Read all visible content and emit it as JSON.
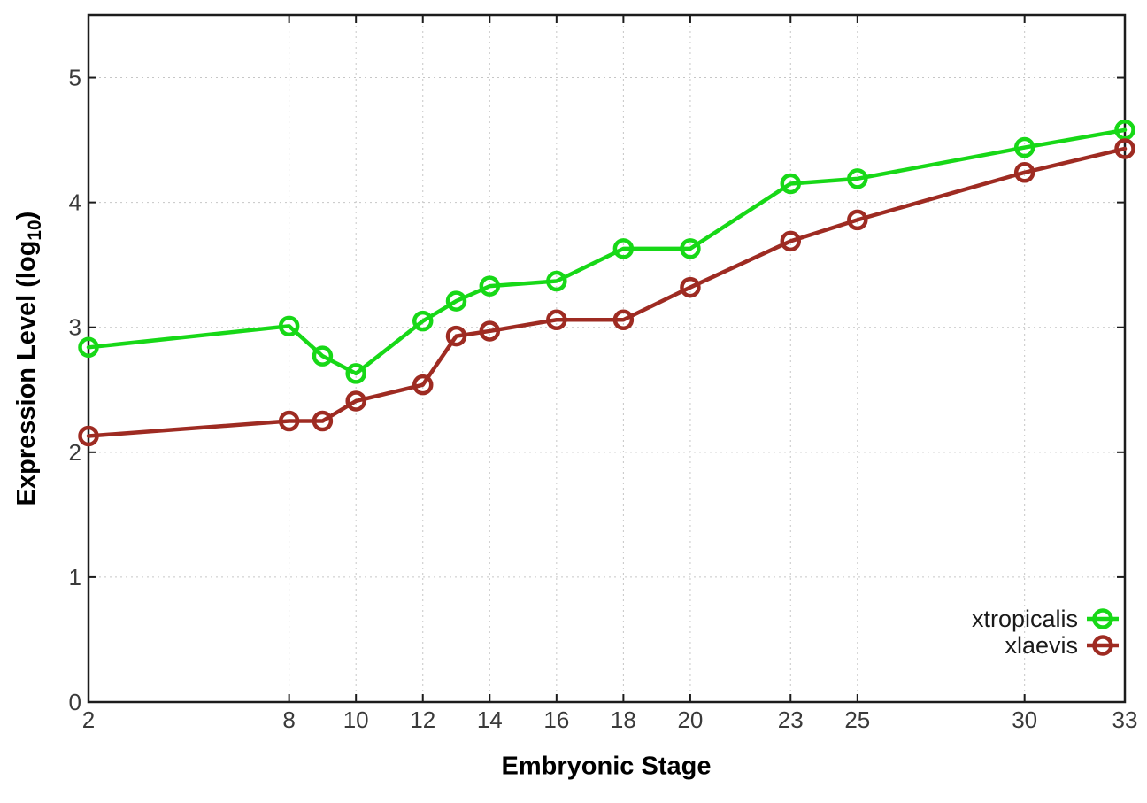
{
  "chart_data": {
    "type": "line",
    "title": "",
    "xlabel": "Embryonic Stage",
    "ylabel": "Expression Level (log10)",
    "ylabel_parts": {
      "pre": "Expression Level (log",
      "sub": "10",
      "post": ")"
    },
    "x": [
      2,
      8,
      9,
      10,
      12,
      13,
      14,
      16,
      18,
      20,
      23,
      25,
      30,
      33
    ],
    "xticks": [
      2,
      8,
      10,
      12,
      14,
      16,
      18,
      20,
      23,
      25,
      30,
      33
    ],
    "yticks": [
      0,
      1,
      2,
      3,
      4,
      5
    ],
    "xlim": [
      2,
      33
    ],
    "ylim": [
      0,
      5.5
    ],
    "grid": true,
    "legend_position": "inside-bottom-right",
    "series": [
      {
        "name": "xtropicalis",
        "color": "#17d817",
        "values": [
          2.84,
          3.01,
          2.77,
          2.63,
          3.05,
          3.21,
          3.33,
          3.37,
          3.63,
          3.63,
          4.15,
          4.19,
          4.44,
          4.58
        ]
      },
      {
        "name": "xlaevis",
        "color": "#9e2b22",
        "values": [
          2.13,
          2.25,
          2.25,
          2.41,
          2.54,
          2.93,
          2.97,
          3.06,
          3.06,
          3.32,
          3.69,
          3.86,
          4.24,
          4.43
        ]
      }
    ]
  },
  "style_colors": {
    "border": "#1c1c1c",
    "grid": "#c6c6c6",
    "tick_label": "#3a3a3a",
    "legend_text": "#1a1a1a"
  }
}
